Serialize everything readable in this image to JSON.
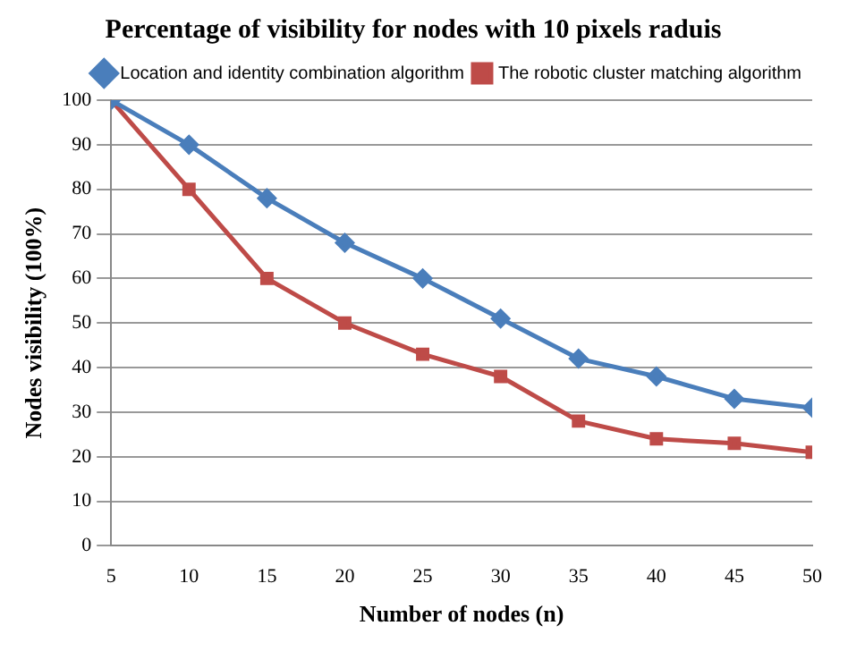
{
  "chart_data": {
    "type": "line",
    "title": "Percentage of visibility for nodes with 10 pixels raduis",
    "xlabel": "Number of nodes (n)",
    "ylabel": "Nodes visibility (100%)",
    "x": [
      5,
      10,
      15,
      20,
      25,
      30,
      35,
      40,
      45,
      50
    ],
    "series": [
      {
        "name": "Location and identity combination algorithm",
        "color": "#4a7ebb",
        "marker": "diamond",
        "values": [
          100,
          90,
          78,
          68,
          60,
          51,
          42,
          38,
          33,
          31
        ]
      },
      {
        "name": "The robotic cluster matching algorithm",
        "color": "#be4b48",
        "marker": "square",
        "values": [
          100,
          80,
          60,
          50,
          43,
          38,
          28,
          24,
          23,
          21
        ]
      }
    ],
    "xlim": [
      5,
      50
    ],
    "xticks": [
      5,
      10,
      15,
      20,
      25,
      30,
      35,
      40,
      45,
      50
    ],
    "ylim": [
      0,
      100
    ],
    "yticks": [
      0,
      10,
      20,
      30,
      40,
      50,
      60,
      70,
      80,
      90,
      100
    ],
    "grid": "y",
    "legend": "top right"
  }
}
